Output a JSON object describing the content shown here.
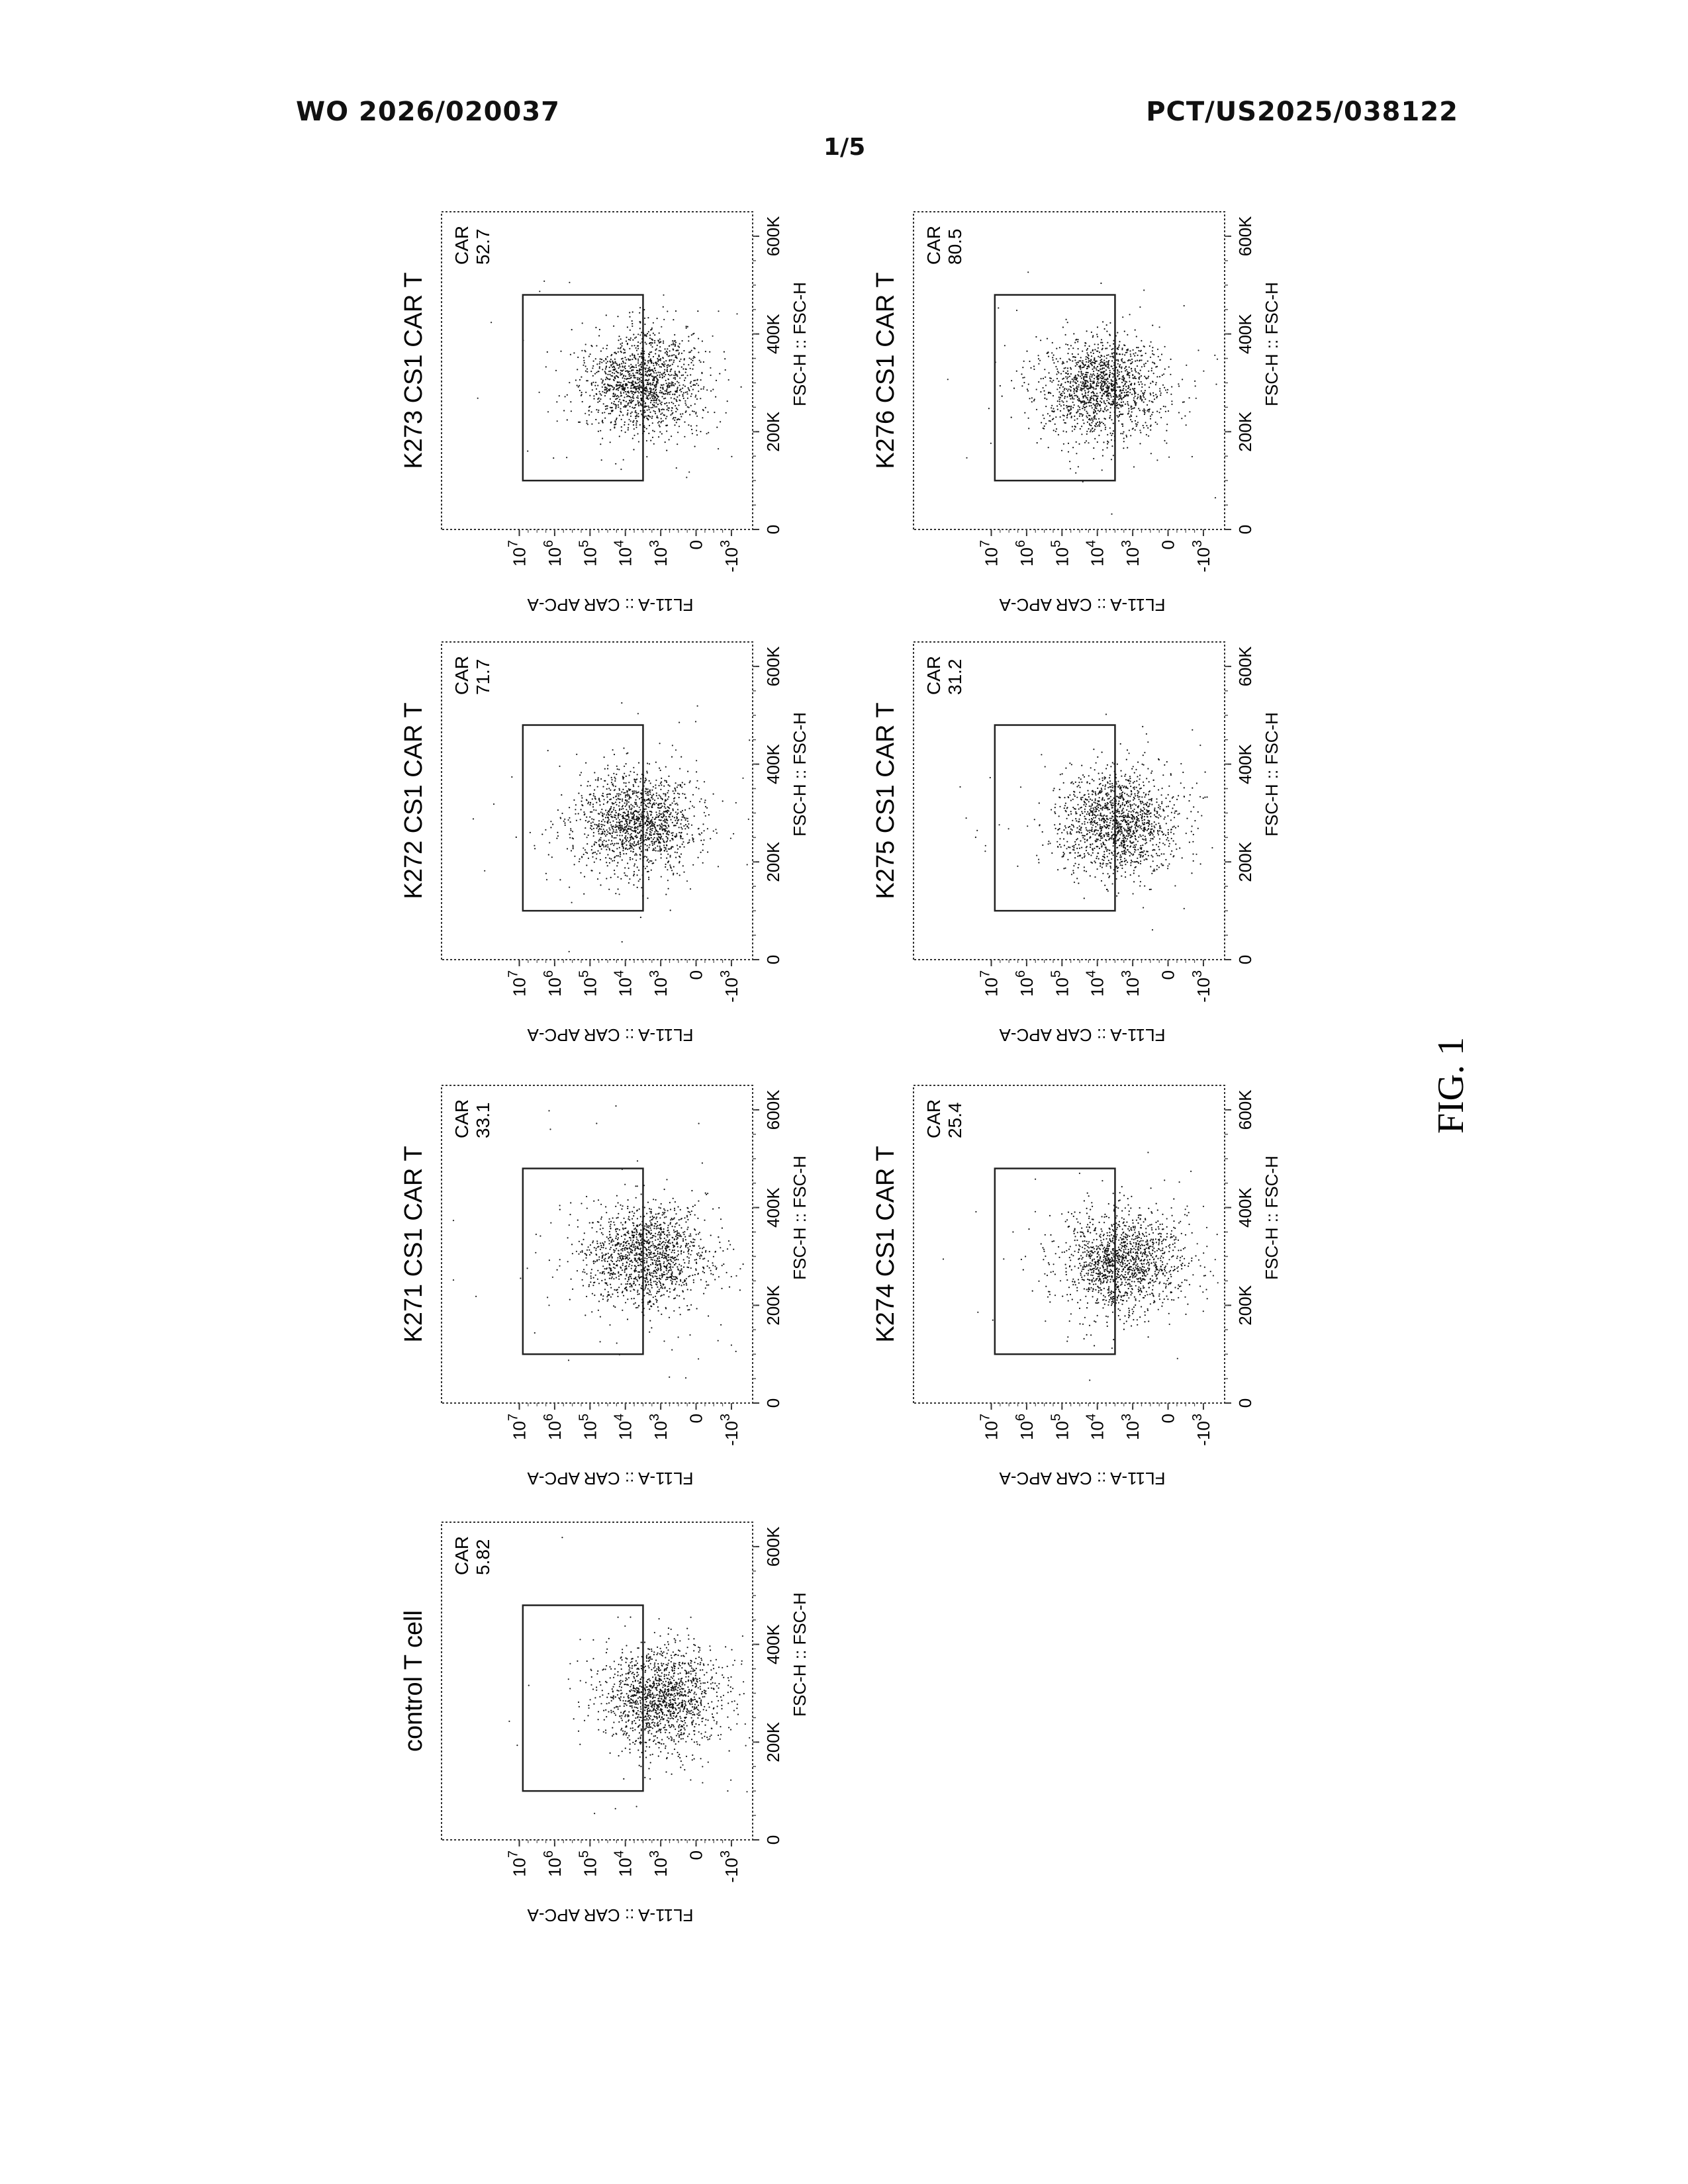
{
  "header": {
    "publication_number": "WO 2026/020037",
    "application_number": "PCT/US2025/038122",
    "sheet": "1/5"
  },
  "figure_label": "FIG. 1",
  "chart_data": [
    {
      "type": "scatter",
      "title": "control T cell",
      "xlabel": "FSC-H :: FSC-H",
      "ylabel": "FL11-A :: CAR APC-A",
      "xlim": [
        0,
        650000
      ],
      "x_ticks": [
        "0",
        "200K",
        "400K",
        "600K"
      ],
      "y_ticks": [
        "-10^3",
        "0",
        "10^3",
        "10^4",
        "10^5",
        "10^6",
        "10^7"
      ],
      "gate": {
        "name": "CAR",
        "percent": "5.82",
        "x_range": [
          100000,
          480000
        ],
        "y_range": [
          "10^3.5",
          "10^7"
        ]
      },
      "population": {
        "x_center": 290000,
        "y_center_log": 3.0,
        "outliers": "sparse"
      }
    },
    {
      "type": "scatter",
      "title": "K271 CS1 CAR T",
      "xlabel": "FSC-H :: FSC-H",
      "ylabel": "FL11-A :: CAR APC-A",
      "xlim": [
        0,
        650000
      ],
      "x_ticks": [
        "0",
        "200K",
        "400K",
        "600K"
      ],
      "y_ticks": [
        "-10^3",
        "0",
        "10^3",
        "10^4",
        "10^5",
        "10^6",
        "10^7"
      ],
      "gate": {
        "name": "CAR",
        "percent": "33.1",
        "x_range": [
          100000,
          480000
        ],
        "y_range": [
          "10^3.5",
          "10^7"
        ]
      },
      "population": {
        "x_center": 300000,
        "y_center_log": 3.4,
        "outliers": "sparse"
      }
    },
    {
      "type": "scatter",
      "title": "K272 CS1 CAR T",
      "xlabel": "FSC-H :: FSC-H",
      "ylabel": "FL11-A :: CAR APC-A",
      "xlim": [
        0,
        650000
      ],
      "x_ticks": [
        "0",
        "200K",
        "400K",
        "600K"
      ],
      "y_ticks": [
        "-10^3",
        "0",
        "10^3",
        "10^4",
        "10^5",
        "10^6",
        "10^7"
      ],
      "gate": {
        "name": "CAR",
        "percent": "71.7",
        "x_range": [
          100000,
          480000
        ],
        "y_range": [
          "10^3.5",
          "10^7"
        ]
      },
      "population": {
        "x_center": 280000,
        "y_center_log": 3.7,
        "outliers": "sparse"
      }
    },
    {
      "type": "scatter",
      "title": "K273 CS1 CAR T",
      "xlabel": "FSC-H :: FSC-H",
      "ylabel": "FL11-A :: CAR APC-A",
      "xlim": [
        0,
        650000
      ],
      "x_ticks": [
        "0",
        "200K",
        "400K",
        "600K"
      ],
      "y_ticks": [
        "-10^3",
        "0",
        "10^3",
        "10^4",
        "10^5",
        "10^6",
        "10^7"
      ],
      "gate": {
        "name": "CAR",
        "percent": "52.7",
        "x_range": [
          100000,
          480000
        ],
        "y_range": [
          "10^3.5",
          "10^7"
        ]
      },
      "population": {
        "x_center": 300000,
        "y_center_log": 3.5,
        "outliers": "sparse"
      }
    },
    {
      "type": "scatter",
      "title": "K274 CS1 CAR T",
      "xlabel": "FSC-H :: FSC-H",
      "ylabel": "FL11-A :: CAR APC-A",
      "xlim": [
        0,
        650000
      ],
      "x_ticks": [
        "0",
        "200K",
        "400K",
        "600K"
      ],
      "y_ticks": [
        "-10^3",
        "0",
        "10^3",
        "10^4",
        "10^5",
        "10^6",
        "10^7"
      ],
      "gate": {
        "name": "CAR",
        "percent": "25.4",
        "x_range": [
          100000,
          480000
        ],
        "y_range": [
          "10^3.5",
          "10^7"
        ]
      },
      "population": {
        "x_center": 290000,
        "y_center_log": 3.3,
        "outliers": "sparse"
      }
    },
    {
      "type": "scatter",
      "title": "K275 CS1 CAR T",
      "xlabel": "FSC-H :: FSC-H",
      "ylabel": "FL11-A :: CAR APC-A",
      "xlim": [
        0,
        650000
      ],
      "x_ticks": [
        "0",
        "200K",
        "400K",
        "600K"
      ],
      "y_ticks": [
        "-10^3",
        "0",
        "10^3",
        "10^4",
        "10^5",
        "10^6",
        "10^7"
      ],
      "gate": {
        "name": "CAR",
        "percent": "31.2",
        "x_range": [
          100000,
          480000
        ],
        "y_range": [
          "10^3.5",
          "10^7"
        ]
      },
      "population": {
        "x_center": 280000,
        "y_center_log": 3.4,
        "outliers": "sparse"
      }
    },
    {
      "type": "scatter",
      "title": "K276 CS1 CAR T",
      "xlabel": "FSC-H :: FSC-H",
      "ylabel": "FL11-A :: CAR APC-A",
      "xlim": [
        0,
        650000
      ],
      "x_ticks": [
        "0",
        "200K",
        "400K",
        "600K"
      ],
      "y_ticks": [
        "-10^3",
        "0",
        "10^3",
        "10^4",
        "10^5",
        "10^6",
        "10^7"
      ],
      "gate": {
        "name": "CAR",
        "percent": "80.5",
        "x_range": [
          100000,
          480000
        ],
        "y_range": [
          "10^3.5",
          "10^7"
        ]
      },
      "population": {
        "x_center": 290000,
        "y_center_log": 3.9,
        "outliers": "sparse"
      }
    }
  ]
}
